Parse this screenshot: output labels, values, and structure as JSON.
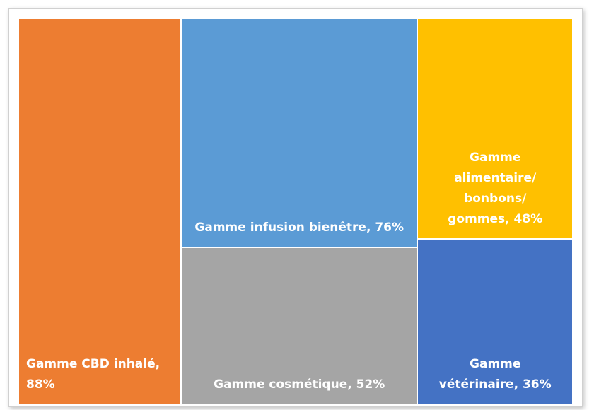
{
  "chart_data": {
    "type": "treemap",
    "values": [
      88,
      76,
      52,
      48,
      36
    ],
    "value_labels": [
      "Gamme CBD inhalé, 88%",
      "Gamme infusion bienêtre, 76%",
      "Gamme cosmétique, 52%",
      "Gamme alimentaire/ bonbons/ gommes, 48%",
      "Gamme vétérinaire, 36%"
    ],
    "colors": [
      "#ED7D31",
      "#5B9BD5",
      "#A5A5A5",
      "#FFC000",
      "#4472C4"
    ]
  }
}
